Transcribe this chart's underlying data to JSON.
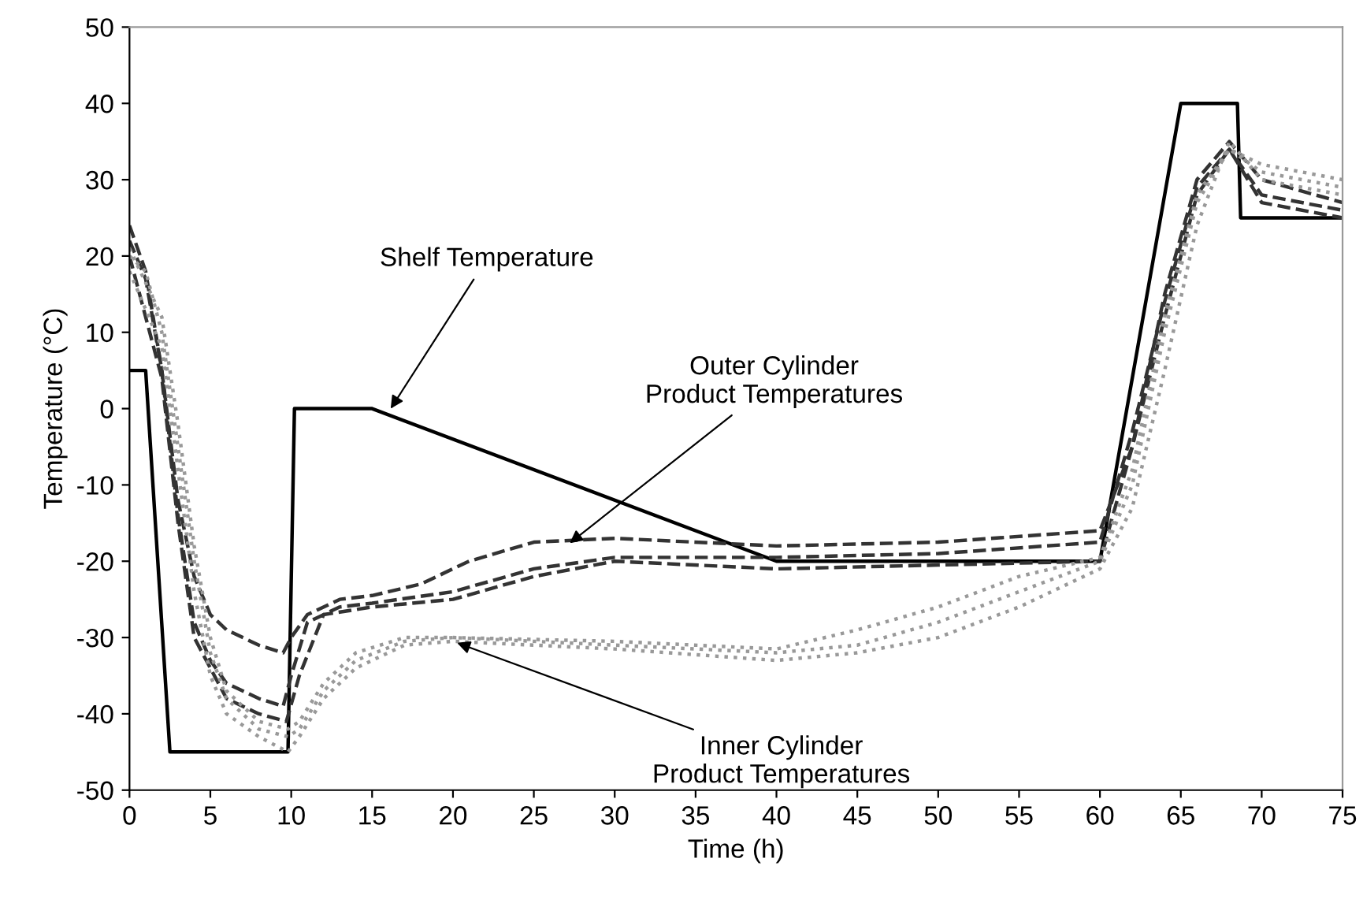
{
  "chart_data": {
    "type": "line",
    "xlabel": "Time (h)",
    "ylabel": "Temperature (°C)",
    "xlim": [
      0,
      75
    ],
    "xticks": [
      0,
      5,
      10,
      15,
      20,
      25,
      30,
      35,
      40,
      45,
      50,
      55,
      60,
      65,
      70,
      75
    ],
    "ylim": [
      -50,
      50
    ],
    "yticks": [
      -50,
      -40,
      -30,
      -20,
      -10,
      0,
      10,
      20,
      30,
      40,
      50
    ],
    "grid": false,
    "legend": false,
    "marker": "none",
    "series": [
      {
        "color": "#000000",
        "line_style": "solid",
        "x": [
          0,
          1,
          2.5,
          9.8,
          10.2,
          15,
          40,
          60,
          65,
          68.5,
          68.7,
          75
        ],
        "values": [
          5,
          5,
          -45,
          -45,
          0,
          0,
          -20,
          -20,
          40,
          40,
          25,
          25
        ]
      },
      {
        "color": "#333333",
        "line_style": "dashed",
        "x": [
          0,
          1,
          2,
          3,
          4,
          5,
          6,
          8,
          9.5,
          10,
          11,
          13,
          15,
          18,
          21,
          25,
          30,
          40,
          50,
          60,
          62,
          64,
          66,
          68,
          70,
          75
        ],
        "values": [
          24,
          18,
          5,
          -12,
          -22,
          -27,
          -29,
          -31,
          -32,
          -30,
          -27,
          -25,
          -24.5,
          -23,
          -20,
          -17.5,
          -17,
          -18,
          -17.5,
          -16,
          -5,
          15,
          30,
          35,
          30,
          27
        ]
      },
      {
        "color": "#333333",
        "line_style": "dashed",
        "x": [
          0,
          1,
          2,
          3,
          4,
          5,
          6,
          8,
          9.5,
          10,
          11,
          13,
          15,
          20,
          25,
          30,
          40,
          50,
          60,
          62,
          64,
          66,
          68,
          70,
          75
        ],
        "values": [
          22,
          17,
          5,
          -14,
          -28,
          -33,
          -36,
          -38,
          -39,
          -35,
          -28,
          -26,
          -25.5,
          -24,
          -21,
          -19.5,
          -19.5,
          -19,
          -17.5,
          -3,
          14,
          29,
          34,
          28,
          26
        ]
      },
      {
        "color": "#333333",
        "line_style": "dashed",
        "x": [
          0,
          2,
          3,
          4,
          6,
          8,
          9.7,
          10.5,
          12,
          15,
          20,
          25,
          30,
          40,
          50,
          60,
          62,
          64,
          66,
          68,
          70,
          75
        ],
        "values": [
          20,
          4,
          -15,
          -30,
          -38,
          -40,
          -41,
          -35,
          -27,
          -26,
          -25,
          -22,
          -20,
          -21,
          -20.5,
          -20,
          -5,
          12,
          28,
          34,
          27,
          25
        ]
      },
      {
        "color": "#999999",
        "line_style": "dotted",
        "x": [
          0,
          1,
          2,
          3,
          4,
          5,
          6,
          8,
          9.8,
          10.5,
          12,
          14,
          17,
          20,
          30,
          40,
          45,
          50,
          55,
          60,
          62,
          64,
          66,
          68,
          70,
          75
        ],
        "values": [
          20,
          18,
          10,
          -5,
          -20,
          -32,
          -38,
          -42,
          -43,
          -42,
          -37,
          -33,
          -30.5,
          -30,
          -31,
          -32,
          -31,
          -28,
          -24,
          -20,
          -10,
          10,
          27,
          34,
          32,
          30
        ]
      },
      {
        "color": "#999999",
        "line_style": "dotted",
        "x": [
          0,
          2,
          3,
          4,
          5,
          6,
          8,
          9.8,
          10.5,
          12,
          14,
          17,
          20,
          30,
          40,
          45,
          50,
          55,
          60,
          62,
          64,
          66,
          68,
          70,
          75
        ],
        "values": [
          18,
          8,
          -8,
          -24,
          -35,
          -40,
          -43,
          -45,
          -43,
          -38,
          -34,
          -31,
          -30.5,
          -31.5,
          -33,
          -32,
          -30,
          -26,
          -21,
          -13,
          5,
          24,
          35,
          30,
          28
        ]
      },
      {
        "color": "#999999",
        "line_style": "dotted",
        "x": [
          0,
          2,
          3,
          4,
          5,
          6,
          8,
          9.8,
          10.5,
          12,
          14,
          17,
          20,
          30,
          40,
          45,
          50,
          55,
          60,
          62,
          64,
          66,
          68,
          70,
          75
        ],
        "values": [
          21,
          12,
          -2,
          -18,
          -30,
          -37,
          -41,
          -42,
          -41,
          -36,
          -32,
          -30,
          -30,
          -30.5,
          -31.5,
          -29,
          -26,
          -22,
          -19.5,
          -8,
          12,
          28,
          34,
          31,
          29
        ]
      }
    ],
    "annotations": [
      {
        "text": "Shelf Temperature",
        "x": 16,
        "y": -0.5
      },
      {
        "text": "Outer Cylinder\nProduct Temperatures",
        "x": 27,
        "y": -18
      },
      {
        "text": "Inner Cylinder\nProduct Temperatures",
        "x": 20,
        "y": -30.5
      }
    ]
  }
}
